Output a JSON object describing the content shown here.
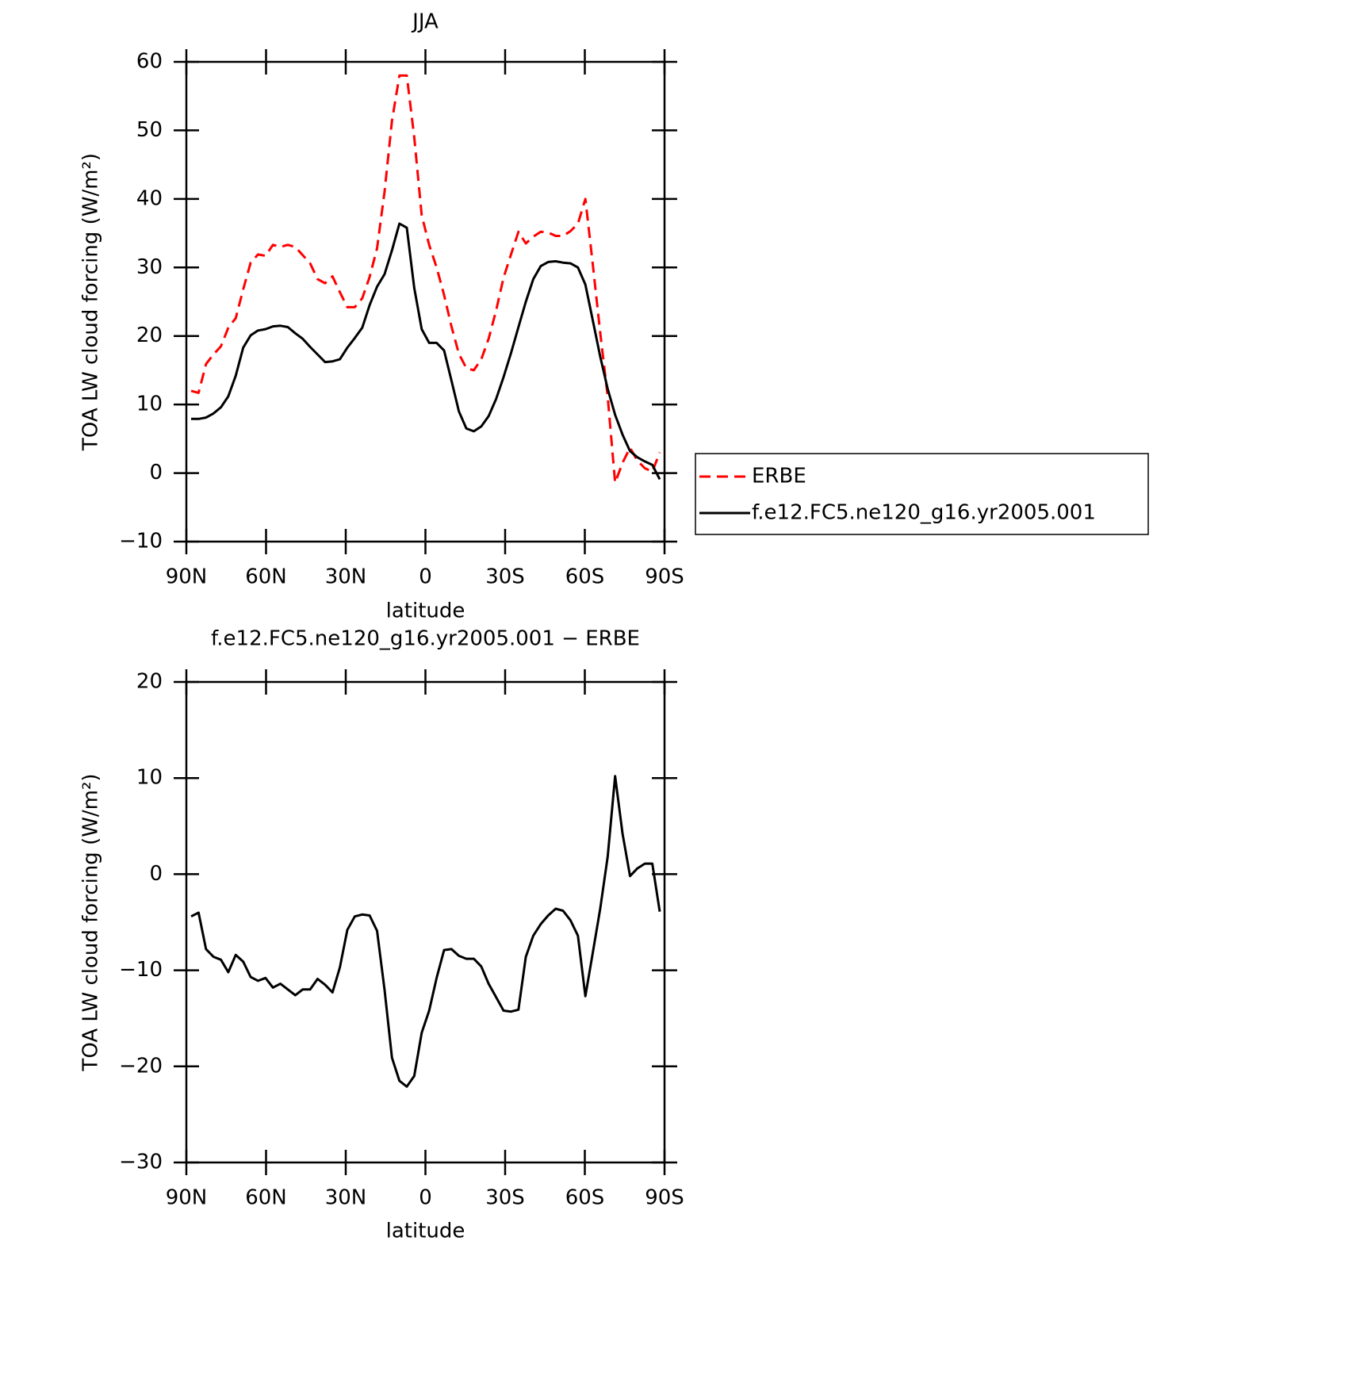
{
  "chart_data": [
    {
      "type": "line",
      "title": "JJA",
      "xlabel": "latitude",
      "ylabel": "TOA LW cloud forcing (W/m²)",
      "x": [
        88.2,
        85.4,
        82.6,
        79.8,
        77.0,
        74.2,
        71.4,
        68.6,
        65.8,
        63.0,
        60.2,
        57.4,
        54.6,
        51.8,
        49.0,
        46.2,
        43.4,
        40.6,
        37.8,
        35.0,
        32.2,
        29.4,
        26.6,
        23.8,
        21.0,
        18.2,
        15.4,
        12.6,
        9.8,
        7.0,
        4.2,
        1.4,
        -1.4,
        -4.2,
        -7.0,
        -9.8,
        -12.6,
        -15.4,
        -18.2,
        -21.0,
        -23.8,
        -26.6,
        -29.4,
        -32.2,
        -35.0,
        -37.8,
        -40.6,
        -43.4,
        -46.2,
        -49.0,
        -51.8,
        -54.6,
        -57.4,
        -60.2,
        -63.0,
        -65.8,
        -68.6,
        -71.4,
        -74.2,
        -77.0,
        -79.8,
        -82.6,
        -85.4,
        -88.2
      ],
      "series": [
        {
          "name": "ERBE",
          "color": "#ff0000",
          "linestyle": "dashed",
          "values": [
            12.0,
            11.7,
            15.9,
            17.3,
            18.5,
            21.2,
            22.6,
            26.8,
            30.7,
            31.9,
            31.7,
            33.3,
            33.0,
            33.3,
            33.0,
            31.8,
            30.6,
            28.3,
            27.7,
            28.7,
            26.4,
            24.2,
            24.2,
            25.5,
            28.6,
            32.8,
            41.0,
            51.4,
            58.0,
            58.0,
            49.0,
            37.6,
            33.3,
            30.0,
            26.0,
            21.4,
            17.4,
            15.3,
            15.0,
            16.6,
            19.6,
            23.7,
            28.5,
            31.9,
            35.2,
            33.5,
            34.5,
            35.2,
            35.1,
            34.6,
            34.6,
            35.3,
            36.4,
            40.0,
            30.5,
            20.5,
            11.2,
            -1.4,
            1.5,
            3.7,
            1.8,
            0.7,
            0.2,
            3.0
          ]
        },
        {
          "name": "f.e12.FC5.ne120_g16.yr2005.001",
          "color": "#000000",
          "linestyle": "solid",
          "values": [
            7.9,
            7.9,
            8.1,
            8.7,
            9.6,
            11.2,
            14.2,
            18.3,
            20.1,
            20.8,
            21.0,
            21.4,
            21.5,
            21.3,
            20.4,
            19.6,
            18.4,
            17.3,
            16.2,
            16.3,
            16.6,
            18.3,
            19.7,
            21.2,
            24.5,
            27.2,
            29.0,
            32.5,
            36.4,
            35.8,
            27.0,
            21.0,
            19.0,
            19.0,
            17.9,
            13.5,
            9.0,
            6.5,
            6.1,
            6.8,
            8.3,
            10.8,
            14.0,
            17.5,
            21.3,
            25.0,
            28.3,
            30.2,
            30.8,
            30.9,
            30.7,
            30.6,
            30.0,
            27.5,
            22.3,
            17.0,
            12.3,
            8.5,
            5.6,
            3.2,
            2.3,
            1.7,
            1.2,
            -0.9
          ]
        }
      ],
      "xlim": [
        90,
        -90
      ],
      "xticks": [
        {
          "value": 90,
          "label": "90N"
        },
        {
          "value": 60,
          "label": "60N"
        },
        {
          "value": 30,
          "label": "30N"
        },
        0,
        {
          "value": -30,
          "label": "30S"
        },
        {
          "value": -60,
          "label": "60S"
        },
        {
          "value": -90,
          "label": "90S"
        }
      ],
      "ylim": [
        -10,
        60
      ],
      "yticks": [
        {
          "value": -10,
          "label": "−10"
        },
        0,
        10,
        20,
        30,
        40,
        50,
        60
      ],
      "legend": "right"
    },
    {
      "type": "line",
      "title": "f.e12.FC5.ne120_g16.yr2005.001 − ERBE",
      "xlabel": "latitude",
      "ylabel": "TOA LW cloud forcing (W/m²)",
      "x": [
        88.2,
        85.4,
        82.6,
        79.8,
        77.0,
        74.2,
        71.4,
        68.6,
        65.8,
        63.0,
        60.2,
        57.4,
        54.6,
        51.8,
        49.0,
        46.2,
        43.4,
        40.6,
        37.8,
        35.0,
        32.2,
        29.4,
        26.6,
        23.8,
        21.0,
        18.2,
        15.4,
        12.6,
        9.8,
        7.0,
        4.2,
        1.4,
        -1.4,
        -4.2,
        -7.0,
        -9.8,
        -12.6,
        -15.4,
        -18.2,
        -21.0,
        -23.8,
        -26.6,
        -29.4,
        -32.2,
        -35.0,
        -37.8,
        -40.6,
        -43.4,
        -46.2,
        -49.0,
        -51.8,
        -54.6,
        -57.4,
        -60.2,
        -63.0,
        -65.8,
        -68.6,
        -71.4,
        -74.2,
        -77.0,
        -79.8,
        -82.6,
        -85.4,
        -88.2
      ],
      "color": "#000000",
      "values": [
        -4.4,
        -4.0,
        -7.8,
        -8.6,
        -8.9,
        -10.2,
        -8.4,
        -9.1,
        -10.7,
        -11.1,
        -10.8,
        -11.8,
        -11.4,
        -12.0,
        -12.6,
        -12.0,
        -12.0,
        -10.9,
        -11.5,
        -12.3,
        -9.7,
        -5.8,
        -4.4,
        -4.2,
        -4.3,
        -5.9,
        -12.0,
        -19.1,
        -21.5,
        -22.1,
        -21.0,
        -16.5,
        -14.2,
        -10.8,
        -7.9,
        -7.8,
        -8.5,
        -8.8,
        -8.8,
        -9.6,
        -11.4,
        -12.8,
        -14.2,
        -14.3,
        -14.1,
        -8.6,
        -6.4,
        -5.2,
        -4.3,
        -3.6,
        -3.8,
        -4.8,
        -6.4,
        -12.7,
        -8.2,
        -3.6,
        1.8,
        10.2,
        4.2,
        -0.2,
        0.6,
        1.1,
        1.1,
        -3.9
      ],
      "xlim": [
        90,
        -90
      ],
      "xticks": [
        {
          "value": 90,
          "label": "90N"
        },
        {
          "value": 60,
          "label": "60N"
        },
        {
          "value": 30,
          "label": "30N"
        },
        0,
        {
          "value": -30,
          "label": "30S"
        },
        {
          "value": -60,
          "label": "60S"
        },
        {
          "value": -90,
          "label": "90S"
        }
      ],
      "ylim": [
        -30,
        20
      ],
      "yticks": [
        {
          "value": -30,
          "label": "−30"
        },
        {
          "value": -20,
          "label": "−20"
        },
        {
          "value": -10,
          "label": "−10"
        },
        0,
        10,
        20
      ]
    }
  ]
}
